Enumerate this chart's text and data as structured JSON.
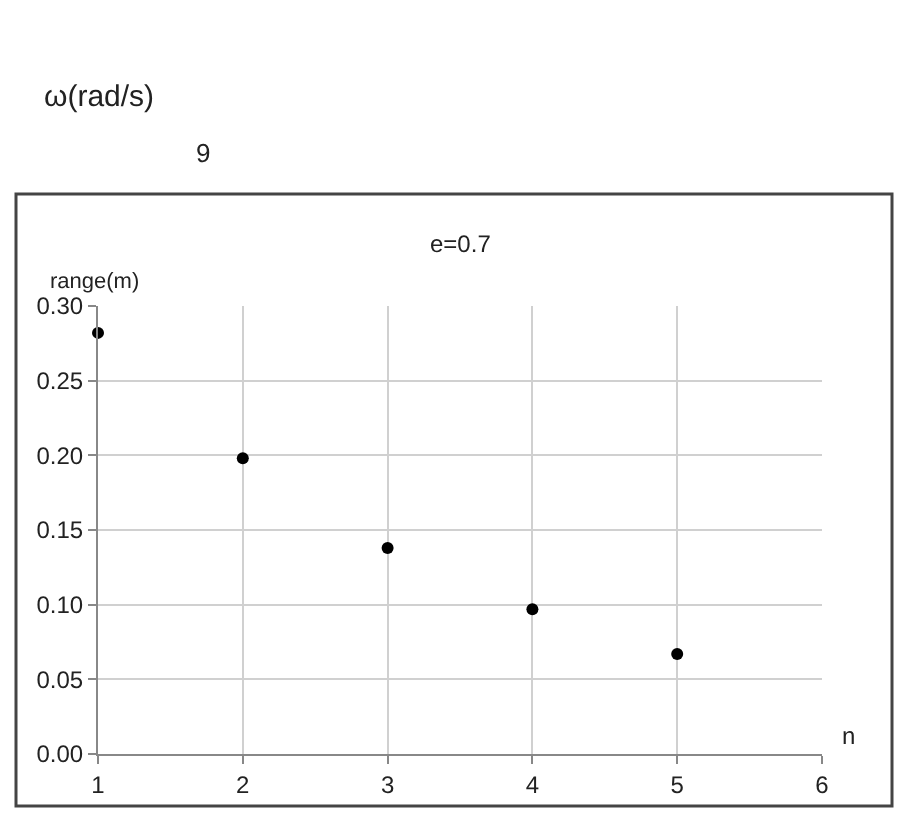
{
  "chart_data": {
    "type": "scatter",
    "title": "e=0.7",
    "xlabel": "n",
    "ylabel": "range(m)",
    "x": [
      1,
      2,
      3,
      4,
      5
    ],
    "series": [
      {
        "color": "#000000",
        "values": [
          0.282,
          0.198,
          0.138,
          0.097,
          0.067
        ]
      }
    ],
    "xlim": [
      1,
      6
    ],
    "xticks": [
      1,
      2,
      3,
      4,
      5,
      6
    ],
    "ylim": [
      0,
      0.3
    ],
    "yticks": [
      {
        "value": 0,
        "label": "0.00"
      },
      {
        "value": 0.05,
        "label": "0.05"
      },
      {
        "value": 0.1,
        "label": "0.10"
      },
      {
        "value": 0.15,
        "label": "0.15"
      },
      {
        "value": 0.2,
        "label": "0.20"
      },
      {
        "value": 0.25,
        "label": "0.25"
      },
      {
        "value": 0.3,
        "label": "0.30"
      }
    ],
    "grid": true,
    "marker": "circle",
    "annotations": [
      "ω(rad/s)",
      "9"
    ]
  }
}
